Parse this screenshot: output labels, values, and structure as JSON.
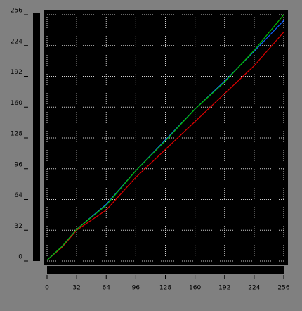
{
  "chart_data": {
    "type": "line",
    "x": [
      0,
      16,
      32,
      64,
      96,
      128,
      160,
      192,
      224,
      256
    ],
    "series": [
      {
        "color": "#e00000",
        "values": [
          1,
          14,
          32,
          53,
          87,
          116,
          145,
          174,
          203,
          238
        ]
      },
      {
        "color": "#1060ff",
        "values": [
          1,
          15,
          33,
          59,
          94,
          126,
          158,
          187,
          218,
          250
        ]
      },
      {
        "color": "#00c000",
        "values": [
          1,
          15,
          33,
          58,
          94,
          125,
          158,
          186,
          219,
          256
        ]
      }
    ],
    "xlim": [
      0,
      256
    ],
    "ylim": [
      0,
      256
    ],
    "xticks": [
      0,
      32,
      64,
      96,
      128,
      160,
      192,
      224,
      256
    ],
    "yticks": [
      0,
      32,
      64,
      96,
      128,
      160,
      192,
      224,
      256
    ],
    "grid": true
  }
}
